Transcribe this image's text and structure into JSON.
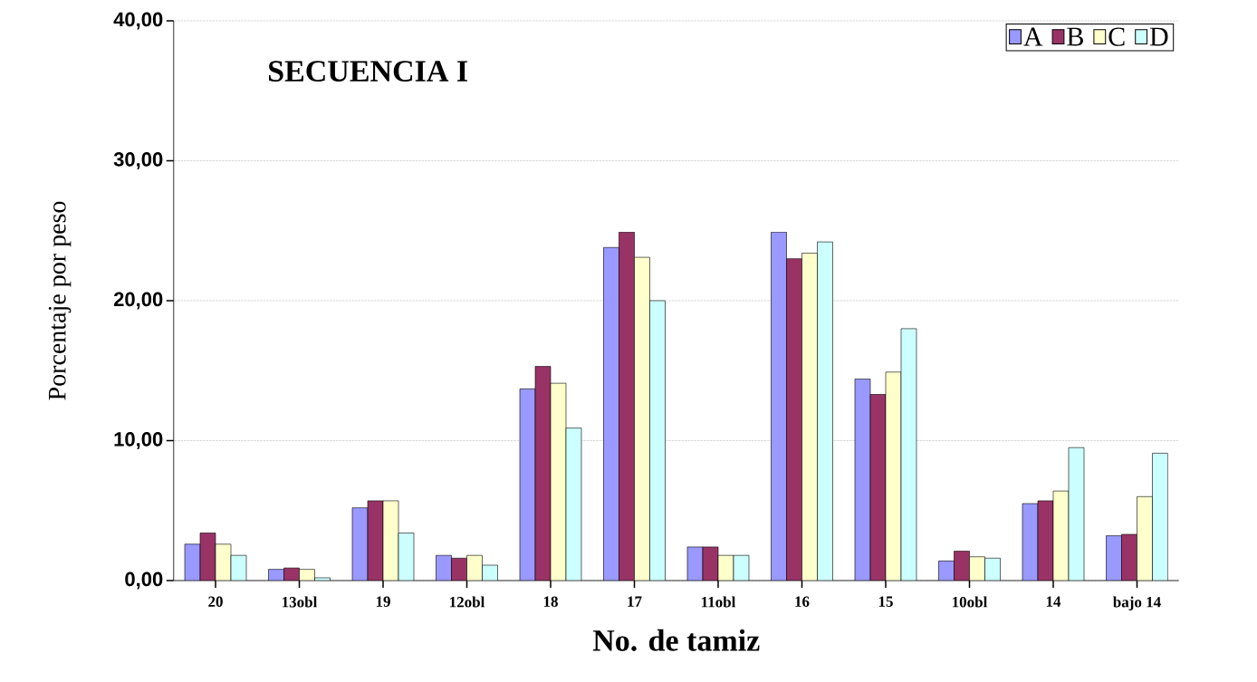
{
  "chart_data": {
    "type": "bar",
    "title": "SECUENCIA I",
    "xlabel": "No. de tamiz",
    "ylabel": "Porcentaje por peso",
    "categories": [
      "20",
      "13obl",
      "19",
      "12obl",
      "18",
      "17",
      "11obl",
      "16",
      "15",
      "10obl",
      "14",
      "bajo 14"
    ],
    "series": [
      {
        "name": "A",
        "color": "#9999ff",
        "values": [
          2.6,
          0.8,
          5.2,
          1.8,
          13.7,
          23.8,
          2.4,
          24.9,
          14.4,
          1.4,
          5.5,
          3.2
        ]
      },
      {
        "name": "B",
        "color": "#993366",
        "values": [
          3.4,
          0.9,
          5.7,
          1.6,
          15.3,
          24.9,
          2.4,
          23.0,
          13.3,
          2.1,
          5.7,
          3.3
        ]
      },
      {
        "name": "C",
        "color": "#ffffcc",
        "values": [
          2.6,
          0.8,
          5.7,
          1.8,
          14.1,
          23.1,
          1.8,
          23.4,
          14.9,
          1.7,
          6.4,
          6.0
        ]
      },
      {
        "name": "D",
        "color": "#ccffff",
        "values": [
          1.8,
          0.2,
          3.4,
          1.1,
          10.9,
          20.0,
          1.8,
          24.2,
          18.0,
          1.6,
          9.5,
          9.1
        ]
      }
    ],
    "ylim": [
      0,
      40
    ],
    "yticks": [
      {
        "value": 0,
        "label": "0,00"
      },
      {
        "value": 10,
        "label": "10,00"
      },
      {
        "value": 20,
        "label": "20,00"
      },
      {
        "value": 30,
        "label": "30,00"
      },
      {
        "value": 40,
        "label": "40,00"
      }
    ],
    "grid": "y",
    "legend": "top right"
  }
}
